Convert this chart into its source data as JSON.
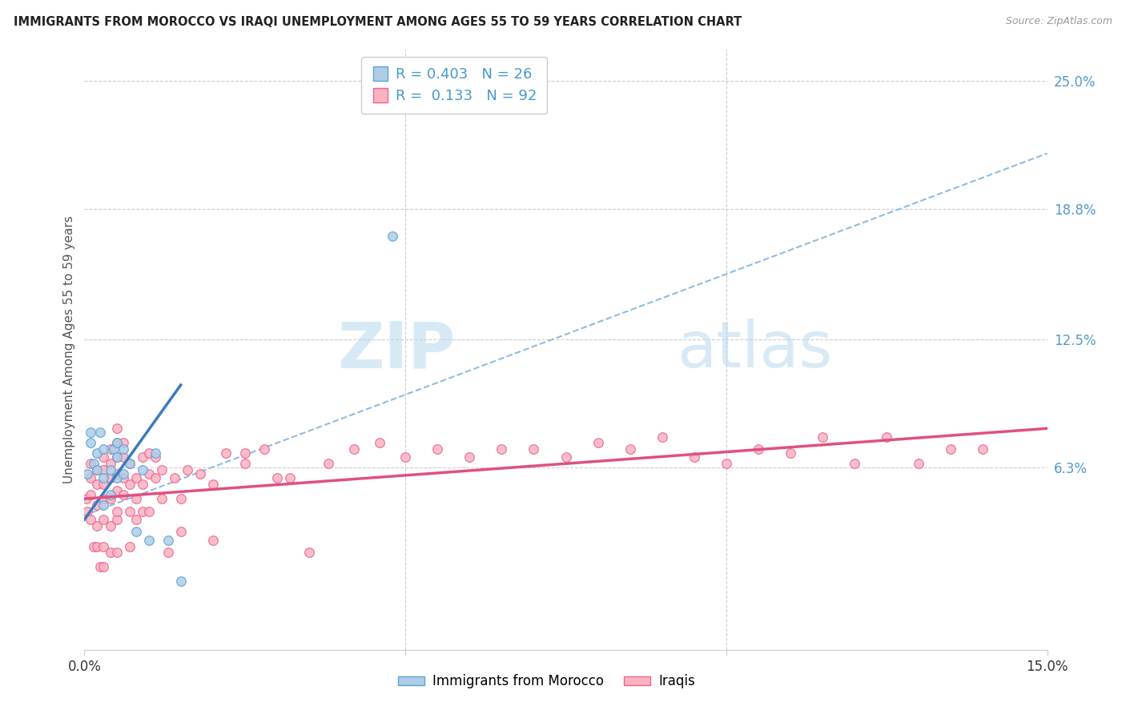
{
  "title": "IMMIGRANTS FROM MOROCCO VS IRAQI UNEMPLOYMENT AMONG AGES 55 TO 59 YEARS CORRELATION CHART",
  "source": "Source: ZipAtlas.com",
  "ylabel": "Unemployment Among Ages 55 to 59 years",
  "xmin": 0.0,
  "xmax": 0.15,
  "ymin": -0.025,
  "ymax": 0.265,
  "yticks": [
    0.063,
    0.125,
    0.188,
    0.25
  ],
  "ytick_labels": [
    "6.3%",
    "12.5%",
    "18.8%",
    "25.0%"
  ],
  "blue_color": "#aecde8",
  "pink_color": "#f9b4c0",
  "blue_edge": "#5ba3d0",
  "pink_edge": "#f06090",
  "trend_blue": "#3a7bbf",
  "trend_pink": "#e05080",
  "dash_color": "#90bce0",
  "watermark_zip": "ZIP",
  "watermark_atlas": "atlas",
  "legend_r1": "R = 0.403",
  "legend_n1": "N = 26",
  "legend_r2": "R =  0.133",
  "legend_n2": "N = 92",
  "blue_scatter_x": [
    0.0005,
    0.001,
    0.001,
    0.0015,
    0.002,
    0.002,
    0.0025,
    0.003,
    0.003,
    0.003,
    0.004,
    0.004,
    0.0045,
    0.005,
    0.005,
    0.005,
    0.006,
    0.006,
    0.007,
    0.008,
    0.009,
    0.01,
    0.011,
    0.013,
    0.015,
    0.048
  ],
  "blue_scatter_y": [
    0.06,
    0.075,
    0.08,
    0.065,
    0.062,
    0.07,
    0.08,
    0.045,
    0.058,
    0.072,
    0.05,
    0.062,
    0.072,
    0.058,
    0.068,
    0.075,
    0.06,
    0.072,
    0.065,
    0.032,
    0.062,
    0.028,
    0.07,
    0.028,
    0.008,
    0.175
  ],
  "pink_scatter_x": [
    0.0003,
    0.0005,
    0.001,
    0.001,
    0.001,
    0.001,
    0.0015,
    0.002,
    0.002,
    0.002,
    0.002,
    0.002,
    0.0025,
    0.003,
    0.003,
    0.003,
    0.003,
    0.003,
    0.003,
    0.003,
    0.004,
    0.004,
    0.004,
    0.004,
    0.004,
    0.004,
    0.005,
    0.005,
    0.005,
    0.005,
    0.005,
    0.005,
    0.005,
    0.006,
    0.006,
    0.006,
    0.006,
    0.007,
    0.007,
    0.007,
    0.008,
    0.008,
    0.009,
    0.009,
    0.009,
    0.01,
    0.01,
    0.011,
    0.011,
    0.012,
    0.013,
    0.014,
    0.015,
    0.016,
    0.018,
    0.02,
    0.022,
    0.025,
    0.028,
    0.032,
    0.035,
    0.038,
    0.042,
    0.046,
    0.05,
    0.055,
    0.06,
    0.065,
    0.07,
    0.075,
    0.08,
    0.085,
    0.09,
    0.095,
    0.1,
    0.105,
    0.11,
    0.115,
    0.12,
    0.125,
    0.13,
    0.135,
    0.14,
    0.03,
    0.025,
    0.02,
    0.015,
    0.012,
    0.01,
    0.008,
    0.007,
    0.005
  ],
  "pink_scatter_y": [
    0.048,
    0.042,
    0.038,
    0.05,
    0.058,
    0.065,
    0.025,
    0.025,
    0.035,
    0.045,
    0.055,
    0.062,
    0.015,
    0.015,
    0.025,
    0.038,
    0.048,
    0.055,
    0.062,
    0.068,
    0.022,
    0.035,
    0.048,
    0.058,
    0.065,
    0.072,
    0.038,
    0.042,
    0.052,
    0.06,
    0.068,
    0.075,
    0.082,
    0.05,
    0.058,
    0.068,
    0.075,
    0.042,
    0.055,
    0.065,
    0.048,
    0.058,
    0.042,
    0.055,
    0.068,
    0.06,
    0.07,
    0.058,
    0.068,
    0.062,
    0.022,
    0.058,
    0.032,
    0.062,
    0.06,
    0.028,
    0.07,
    0.07,
    0.072,
    0.058,
    0.022,
    0.065,
    0.072,
    0.075,
    0.068,
    0.072,
    0.068,
    0.072,
    0.072,
    0.068,
    0.075,
    0.072,
    0.078,
    0.068,
    0.065,
    0.072,
    0.07,
    0.078,
    0.065,
    0.078,
    0.065,
    0.072,
    0.072,
    0.058,
    0.065,
    0.055,
    0.048,
    0.048,
    0.042,
    0.038,
    0.025,
    0.022
  ],
  "blue_line_x0": 0.0,
  "blue_line_x1": 0.015,
  "blue_line_y0": 0.038,
  "blue_line_y1": 0.103,
  "pink_line_x0": 0.0,
  "pink_line_x1": 0.15,
  "pink_line_y0": 0.048,
  "pink_line_y1": 0.082,
  "dash_line_x0": 0.0,
  "dash_line_x1": 0.15,
  "dash_line_y0": 0.04,
  "dash_line_y1": 0.215
}
